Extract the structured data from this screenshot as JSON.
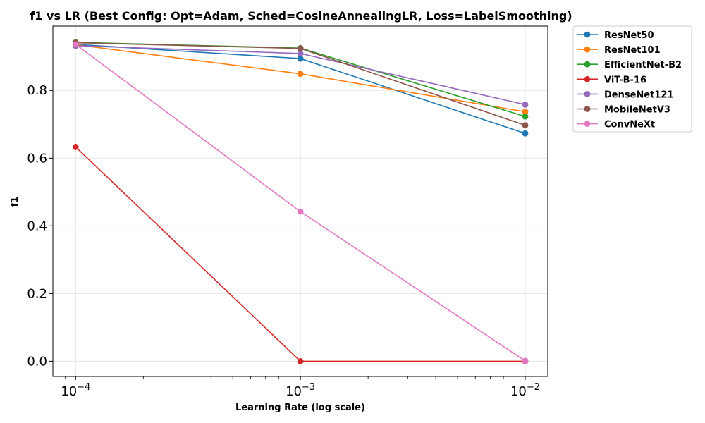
{
  "chart_data": {
    "type": "line",
    "title": "f1 vs LR (Best Config: Opt=Adam, Sched=CosineAnnealingLR, Loss=LabelSmoothing)",
    "xlabel": "Learning Rate (log scale)",
    "ylabel": "f1",
    "x_scale": "log",
    "x": [
      0.0001,
      0.001,
      0.01
    ],
    "x_tick_labels": [
      {
        "base": "10",
        "exp": "−4"
      },
      {
        "base": "10",
        "exp": "−3"
      },
      {
        "base": "10",
        "exp": "−2"
      }
    ],
    "xlim": [
      7.92e-05,
      0.0126
    ],
    "ylim": [
      -0.045,
      0.99
    ],
    "y_ticks": [
      0.0,
      0.2,
      0.4,
      0.6,
      0.8
    ],
    "y_tick_labels": [
      "0.0",
      "0.2",
      "0.4",
      "0.6",
      "0.8"
    ],
    "grid": true,
    "legend_position": "outside-right",
    "series": [
      {
        "name": "ResNet50",
        "color": "#1f77b4",
        "values": [
          0.936,
          0.894,
          0.673
        ]
      },
      {
        "name": "ResNet101",
        "color": "#ff7f0e",
        "values": [
          0.935,
          0.849,
          0.737
        ]
      },
      {
        "name": "EfficientNet-B2",
        "color": "#2ca02c",
        "values": [
          0.942,
          0.925,
          0.723
        ]
      },
      {
        "name": "ViT-B-16",
        "color": "#d62728",
        "values": [
          0.633,
          0.0,
          0.0
        ]
      },
      {
        "name": "DenseNet121",
        "color": "#9467bd",
        "values": [
          0.932,
          0.909,
          0.758
        ]
      },
      {
        "name": "MobileNetV3",
        "color": "#8c564b",
        "values": [
          0.941,
          0.924,
          0.697
        ]
      },
      {
        "name": "ConvNeXt",
        "color": "#e377c2",
        "values": [
          0.936,
          0.442,
          0.001
        ]
      }
    ]
  }
}
